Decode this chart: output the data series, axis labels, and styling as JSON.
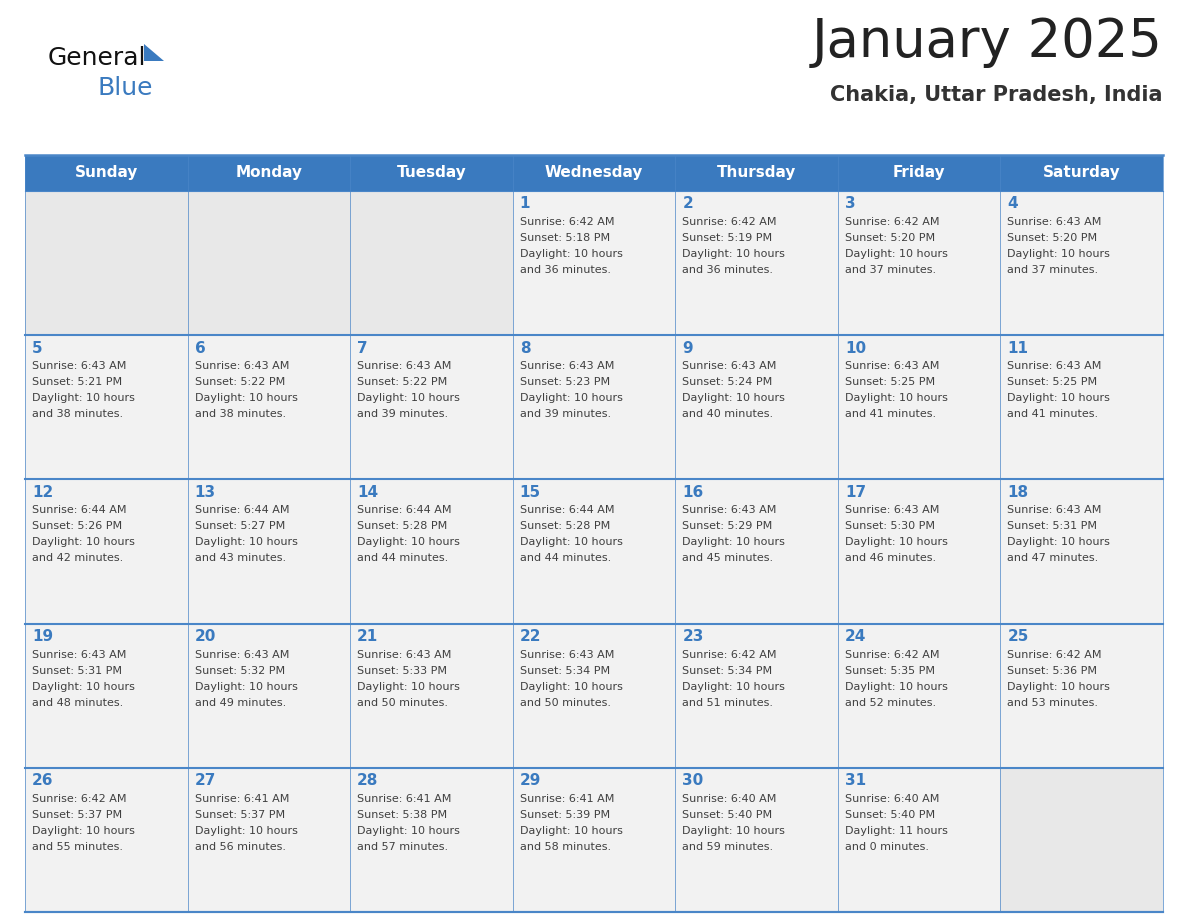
{
  "title": "January 2025",
  "subtitle": "Chakia, Uttar Pradesh, India",
  "days_of_week": [
    "Sunday",
    "Monday",
    "Tuesday",
    "Wednesday",
    "Thursday",
    "Friday",
    "Saturday"
  ],
  "header_bg_color": "#3a7abf",
  "header_text_color": "#ffffff",
  "cell_bg_filled": "#f2f2f2",
  "cell_bg_empty": "#e8e8e8",
  "day_number_color": "#3a7abf",
  "text_color": "#404040",
  "border_color": "#4a86c8",
  "title_color": "#222222",
  "subtitle_color": "#333333",
  "logo_general_color": "#111111",
  "logo_blue_color": "#3a7abf",
  "calendar_data": [
    [
      {
        "day": "",
        "sunrise": "",
        "sunset": "",
        "daylight_h": "",
        "daylight_m": ""
      },
      {
        "day": "",
        "sunrise": "",
        "sunset": "",
        "daylight_h": "",
        "daylight_m": ""
      },
      {
        "day": "",
        "sunrise": "",
        "sunset": "",
        "daylight_h": "",
        "daylight_m": ""
      },
      {
        "day": "1",
        "sunrise": "6:42 AM",
        "sunset": "5:18 PM",
        "daylight_h": "10 hours",
        "daylight_m": "and 36 minutes."
      },
      {
        "day": "2",
        "sunrise": "6:42 AM",
        "sunset": "5:19 PM",
        "daylight_h": "10 hours",
        "daylight_m": "and 36 minutes."
      },
      {
        "day": "3",
        "sunrise": "6:42 AM",
        "sunset": "5:20 PM",
        "daylight_h": "10 hours",
        "daylight_m": "and 37 minutes."
      },
      {
        "day": "4",
        "sunrise": "6:43 AM",
        "sunset": "5:20 PM",
        "daylight_h": "10 hours",
        "daylight_m": "and 37 minutes."
      }
    ],
    [
      {
        "day": "5",
        "sunrise": "6:43 AM",
        "sunset": "5:21 PM",
        "daylight_h": "10 hours",
        "daylight_m": "and 38 minutes."
      },
      {
        "day": "6",
        "sunrise": "6:43 AM",
        "sunset": "5:22 PM",
        "daylight_h": "10 hours",
        "daylight_m": "and 38 minutes."
      },
      {
        "day": "7",
        "sunrise": "6:43 AM",
        "sunset": "5:22 PM",
        "daylight_h": "10 hours",
        "daylight_m": "and 39 minutes."
      },
      {
        "day": "8",
        "sunrise": "6:43 AM",
        "sunset": "5:23 PM",
        "daylight_h": "10 hours",
        "daylight_m": "and 39 minutes."
      },
      {
        "day": "9",
        "sunrise": "6:43 AM",
        "sunset": "5:24 PM",
        "daylight_h": "10 hours",
        "daylight_m": "and 40 minutes."
      },
      {
        "day": "10",
        "sunrise": "6:43 AM",
        "sunset": "5:25 PM",
        "daylight_h": "10 hours",
        "daylight_m": "and 41 minutes."
      },
      {
        "day": "11",
        "sunrise": "6:43 AM",
        "sunset": "5:25 PM",
        "daylight_h": "10 hours",
        "daylight_m": "and 41 minutes."
      }
    ],
    [
      {
        "day": "12",
        "sunrise": "6:44 AM",
        "sunset": "5:26 PM",
        "daylight_h": "10 hours",
        "daylight_m": "and 42 minutes."
      },
      {
        "day": "13",
        "sunrise": "6:44 AM",
        "sunset": "5:27 PM",
        "daylight_h": "10 hours",
        "daylight_m": "and 43 minutes."
      },
      {
        "day": "14",
        "sunrise": "6:44 AM",
        "sunset": "5:28 PM",
        "daylight_h": "10 hours",
        "daylight_m": "and 44 minutes."
      },
      {
        "day": "15",
        "sunrise": "6:44 AM",
        "sunset": "5:28 PM",
        "daylight_h": "10 hours",
        "daylight_m": "and 44 minutes."
      },
      {
        "day": "16",
        "sunrise": "6:43 AM",
        "sunset": "5:29 PM",
        "daylight_h": "10 hours",
        "daylight_m": "and 45 minutes."
      },
      {
        "day": "17",
        "sunrise": "6:43 AM",
        "sunset": "5:30 PM",
        "daylight_h": "10 hours",
        "daylight_m": "and 46 minutes."
      },
      {
        "day": "18",
        "sunrise": "6:43 AM",
        "sunset": "5:31 PM",
        "daylight_h": "10 hours",
        "daylight_m": "and 47 minutes."
      }
    ],
    [
      {
        "day": "19",
        "sunrise": "6:43 AM",
        "sunset": "5:31 PM",
        "daylight_h": "10 hours",
        "daylight_m": "and 48 minutes."
      },
      {
        "day": "20",
        "sunrise": "6:43 AM",
        "sunset": "5:32 PM",
        "daylight_h": "10 hours",
        "daylight_m": "and 49 minutes."
      },
      {
        "day": "21",
        "sunrise": "6:43 AM",
        "sunset": "5:33 PM",
        "daylight_h": "10 hours",
        "daylight_m": "and 50 minutes."
      },
      {
        "day": "22",
        "sunrise": "6:43 AM",
        "sunset": "5:34 PM",
        "daylight_h": "10 hours",
        "daylight_m": "and 50 minutes."
      },
      {
        "day": "23",
        "sunrise": "6:42 AM",
        "sunset": "5:34 PM",
        "daylight_h": "10 hours",
        "daylight_m": "and 51 minutes."
      },
      {
        "day": "24",
        "sunrise": "6:42 AM",
        "sunset": "5:35 PM",
        "daylight_h": "10 hours",
        "daylight_m": "and 52 minutes."
      },
      {
        "day": "25",
        "sunrise": "6:42 AM",
        "sunset": "5:36 PM",
        "daylight_h": "10 hours",
        "daylight_m": "and 53 minutes."
      }
    ],
    [
      {
        "day": "26",
        "sunrise": "6:42 AM",
        "sunset": "5:37 PM",
        "daylight_h": "10 hours",
        "daylight_m": "and 55 minutes."
      },
      {
        "day": "27",
        "sunrise": "6:41 AM",
        "sunset": "5:37 PM",
        "daylight_h": "10 hours",
        "daylight_m": "and 56 minutes."
      },
      {
        "day": "28",
        "sunrise": "6:41 AM",
        "sunset": "5:38 PM",
        "daylight_h": "10 hours",
        "daylight_m": "and 57 minutes."
      },
      {
        "day": "29",
        "sunrise": "6:41 AM",
        "sunset": "5:39 PM",
        "daylight_h": "10 hours",
        "daylight_m": "and 58 minutes."
      },
      {
        "day": "30",
        "sunrise": "6:40 AM",
        "sunset": "5:40 PM",
        "daylight_h": "10 hours",
        "daylight_m": "and 59 minutes."
      },
      {
        "day": "31",
        "sunrise": "6:40 AM",
        "sunset": "5:40 PM",
        "daylight_h": "11 hours",
        "daylight_m": "and 0 minutes."
      },
      {
        "day": "",
        "sunrise": "",
        "sunset": "",
        "daylight_h": "",
        "daylight_m": ""
      }
    ]
  ]
}
